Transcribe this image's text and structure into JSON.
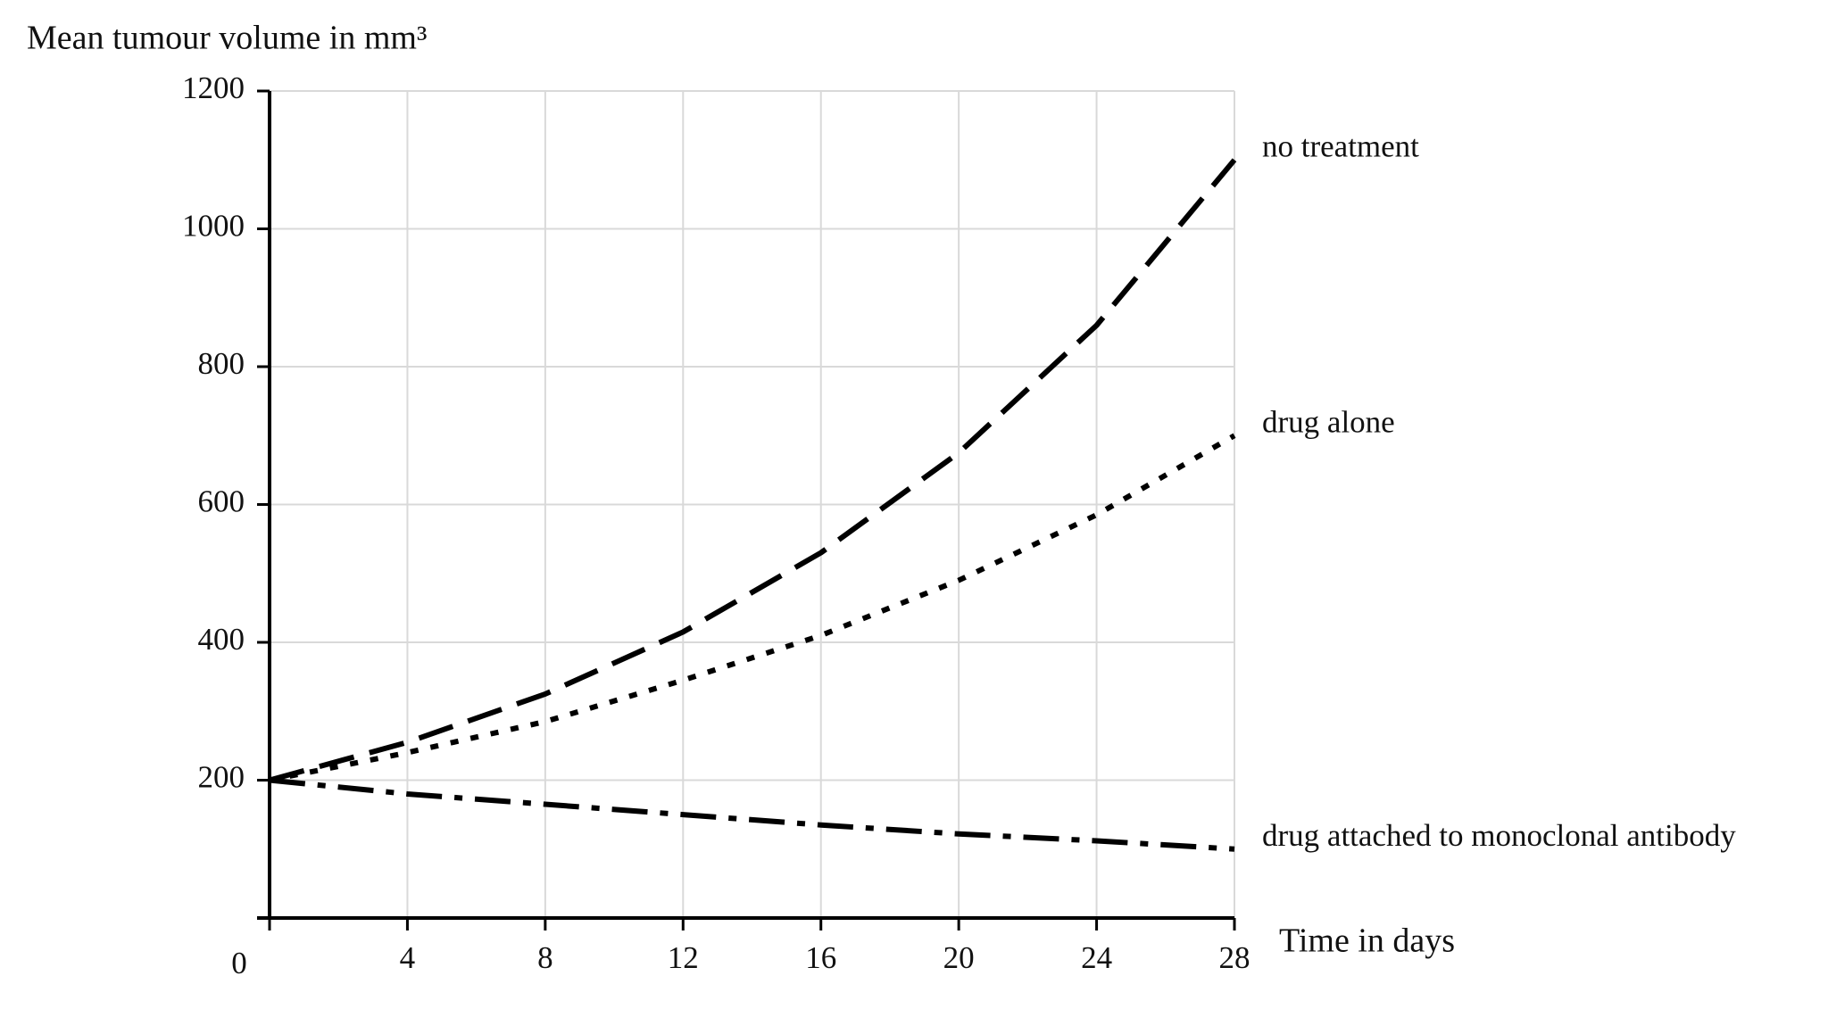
{
  "chart_data": {
    "type": "line",
    "title": "Mean tumour volume in mm³",
    "x_label": "Time in days",
    "x": [
      0,
      4,
      8,
      12,
      16,
      20,
      24,
      28
    ],
    "series": [
      {
        "name": "no treatment",
        "color": "#000000",
        "line_style": "dashed",
        "values": [
          200,
          255,
          325,
          415,
          530,
          675,
          860,
          1100
        ]
      },
      {
        "name": "drug alone",
        "color": "#000000",
        "line_style": "dotted",
        "values": [
          200,
          240,
          285,
          345,
          410,
          490,
          585,
          700
        ]
      },
      {
        "name": "drug attached to monoclonal antibody",
        "color": "#000000",
        "line_style": "dashdot",
        "values": [
          200,
          180,
          165,
          150,
          135,
          122,
          112,
          100
        ]
      }
    ],
    "xlim": [
      0,
      28
    ],
    "ylim": [
      0,
      1200
    ],
    "xticks": [
      0,
      4,
      8,
      12,
      16,
      20,
      24,
      28
    ],
    "yticks": [
      200,
      400,
      600,
      800,
      1000,
      1200
    ],
    "grid": true
  }
}
